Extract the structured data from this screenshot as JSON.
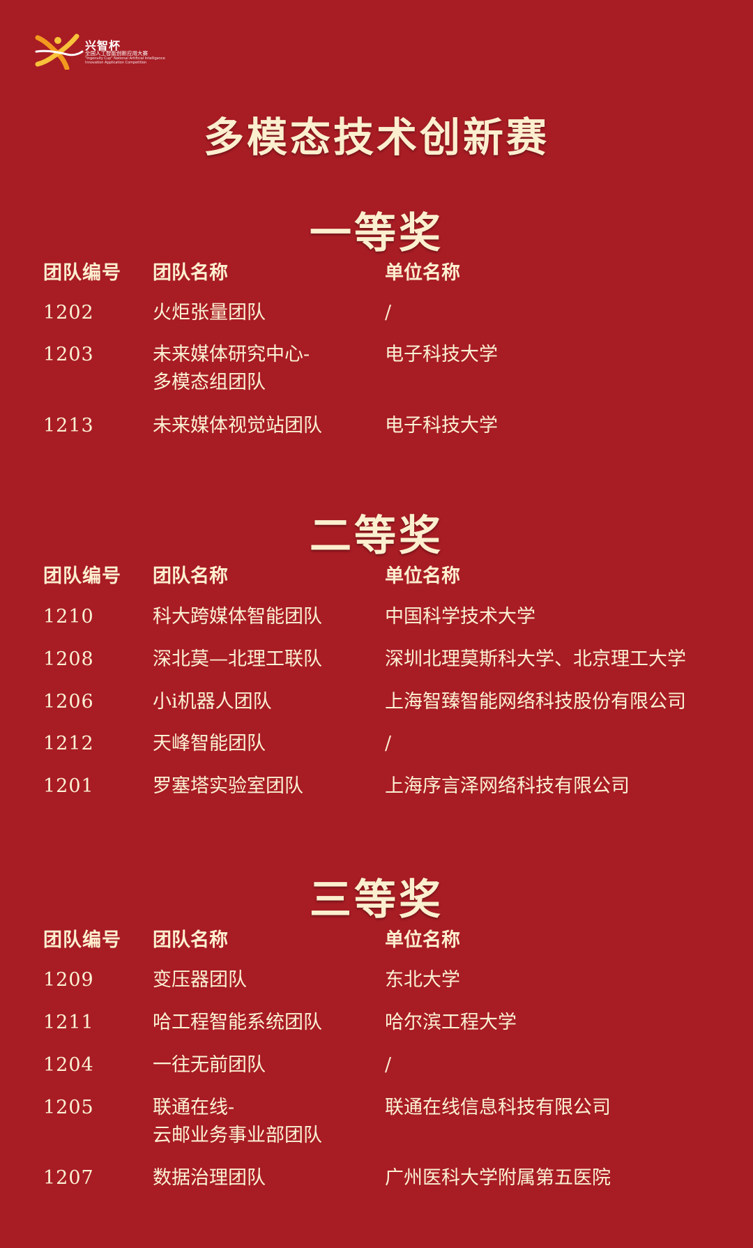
{
  "logo": {
    "name": "兴智杯",
    "subtitle": "全国人工智能创新应用大赛",
    "subtitle_en_1": "\"Ingenuity Cup\" National Artificial Intelligence",
    "subtitle_en_2": "Innovation Application Competition"
  },
  "page_title": "多模态技术创新赛",
  "table_headers": {
    "team_id": "团队编号",
    "team_name": "团队名称",
    "unit_name": "单位名称"
  },
  "awards": [
    {
      "title": "一等奖",
      "rows": [
        {
          "id": "1202",
          "name": "火炬张量团队",
          "unit": "/"
        },
        {
          "id": "1203",
          "name": "未来媒体研究中心-\n多模态组团队",
          "unit": "电子科技大学"
        },
        {
          "id": "1213",
          "name": "未来媒体视觉站团队",
          "unit": "电子科技大学"
        }
      ]
    },
    {
      "title": "二等奖",
      "rows": [
        {
          "id": "1210",
          "name": "科大跨媒体智能团队",
          "unit": "中国科学技术大学"
        },
        {
          "id": "1208",
          "name": "深北莫—北理工联队",
          "unit": "深圳北理莫斯科大学、北京理工大学"
        },
        {
          "id": "1206",
          "name": "小i机器人团队",
          "unit": "上海智臻智能网络科技股份有限公司"
        },
        {
          "id": "1212",
          "name": "天峰智能团队",
          "unit": "/"
        },
        {
          "id": "1201",
          "name": "罗塞塔实验室团队",
          "unit": "上海序言泽网络科技有限公司"
        }
      ]
    },
    {
      "title": "三等奖",
      "rows": [
        {
          "id": "1209",
          "name": "变压器团队",
          "unit": "东北大学"
        },
        {
          "id": "1211",
          "name": "哈工程智能系统团队",
          "unit": "哈尔滨工程大学"
        },
        {
          "id": "1204",
          "name": "一往无前团队",
          "unit": "/"
        },
        {
          "id": "1205",
          "name": "联通在线-\n云邮业务事业部团队",
          "unit": "联通在线信息科技有限公司"
        },
        {
          "id": "1207",
          "name": "数据治理团队",
          "unit": "广州医科大学附属第五医院"
        }
      ]
    }
  ],
  "colors": {
    "background": "#a81c24",
    "text": "#fbf1d4",
    "logo_orange": "#f29a1e",
    "logo_yellow": "#f8c23a"
  }
}
